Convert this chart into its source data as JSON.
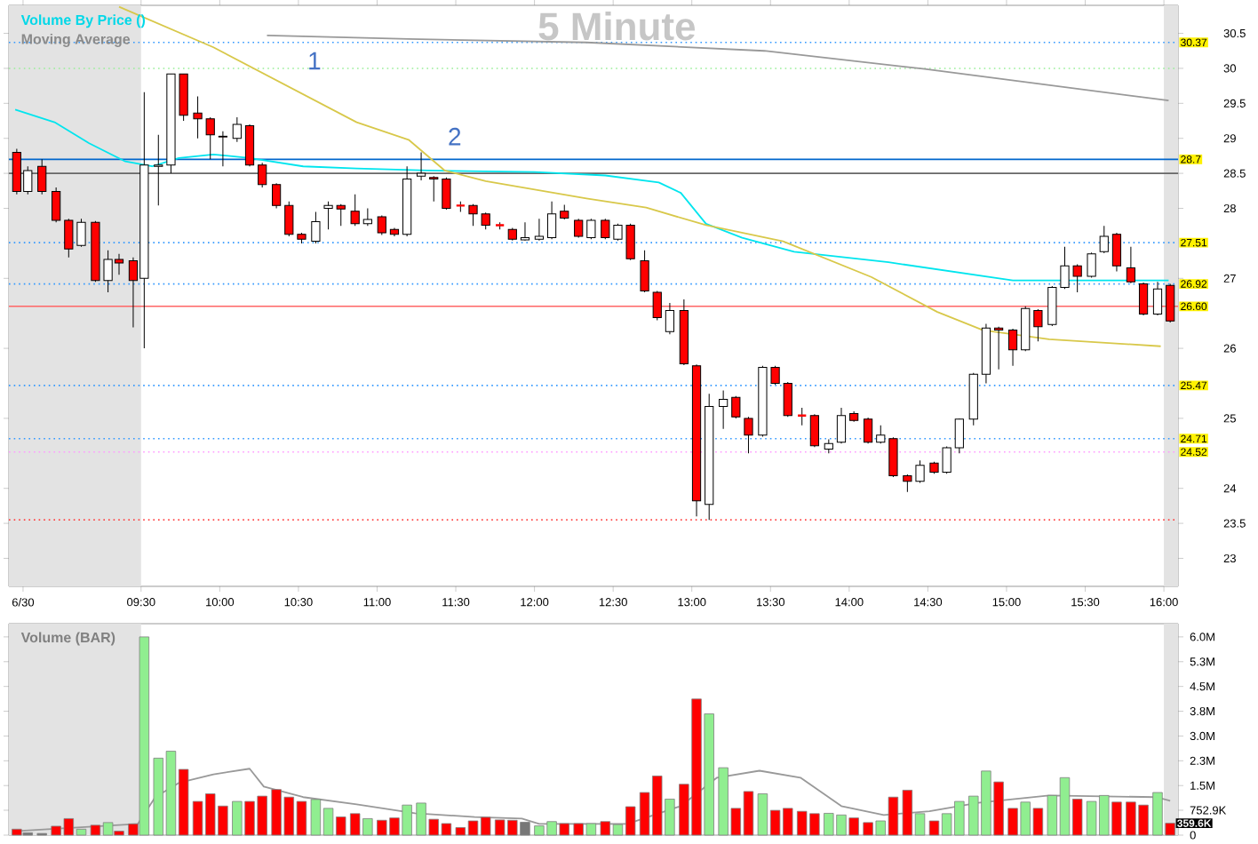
{
  "chart_data": [
    {
      "type": "candlestick",
      "title": "5 Minute",
      "annotations": [
        "Volume By Price ()",
        "Moving Average",
        "1",
        "2"
      ],
      "x": [
        8.71,
        8.78,
        8.87,
        8.96,
        9.04,
        9.12,
        9.21,
        9.29,
        9.36,
        9.45,
        9.52,
        9.61,
        9.69,
        9.77,
        9.86,
        9.94,
        10.02,
        10.11,
        10.19,
        10.27,
        10.36,
        10.44,
        10.52,
        10.61,
        10.69,
        10.77,
        10.86,
        10.94,
        11.03,
        11.11,
        11.19,
        11.28,
        11.36,
        11.44,
        11.53,
        11.61,
        11.69,
        11.78,
        11.86,
        11.94,
        12.03,
        12.11,
        12.19,
        12.28,
        12.36,
        12.45,
        12.53,
        12.61,
        12.7,
        12.78,
        12.86,
        12.95,
        13.03,
        13.11,
        13.2,
        13.28,
        13.36,
        13.45,
        13.53,
        13.61,
        13.7,
        13.78,
        13.87,
        13.95,
        14.03,
        14.12,
        14.2,
        14.28,
        14.37,
        14.45,
        14.54,
        14.62,
        14.7,
        14.79,
        14.87,
        14.95,
        15.04,
        15.12,
        15.2,
        15.29,
        15.37,
        15.45,
        15.54,
        15.62,
        15.7,
        15.79,
        15.87,
        15.96,
        16.04
      ],
      "ohlc": [
        [
          28.8,
          28.85,
          28.2,
          28.24
        ],
        [
          28.24,
          28.6,
          28.2,
          28.54
        ],
        [
          28.6,
          28.7,
          28.2,
          28.24
        ],
        [
          28.24,
          28.3,
          27.8,
          27.83
        ],
        [
          27.83,
          27.85,
          27.3,
          27.42
        ],
        [
          27.47,
          27.85,
          27.45,
          27.8
        ],
        [
          27.8,
          27.82,
          26.95,
          26.97
        ],
        [
          26.97,
          27.4,
          26.8,
          27.27
        ],
        [
          27.27,
          27.35,
          27.05,
          27.22
        ],
        [
          27.25,
          27.3,
          26.3,
          26.97
        ],
        [
          27.0,
          29.66,
          26.0,
          28.62
        ],
        [
          28.6,
          29.05,
          28.04,
          28.62
        ],
        [
          28.62,
          29.92,
          28.5,
          29.92
        ],
        [
          29.92,
          29.92,
          29.25,
          29.33
        ],
        [
          29.36,
          29.6,
          29.0,
          29.28
        ],
        [
          29.28,
          29.3,
          28.7,
          29.05
        ],
        [
          29.03,
          29.1,
          28.6,
          29.02
        ],
        [
          29.0,
          29.3,
          28.95,
          29.2
        ],
        [
          29.18,
          29.2,
          28.6,
          28.62
        ],
        [
          28.62,
          28.65,
          28.3,
          28.34
        ],
        [
          28.34,
          28.36,
          28.0,
          28.04
        ],
        [
          28.04,
          28.1,
          27.6,
          27.63
        ],
        [
          27.63,
          27.65,
          27.5,
          27.56
        ],
        [
          27.53,
          27.95,
          27.5,
          27.81
        ],
        [
          28.0,
          28.1,
          27.7,
          28.04
        ],
        [
          28.04,
          28.06,
          27.75,
          27.99
        ],
        [
          27.96,
          28.2,
          27.75,
          27.78
        ],
        [
          27.78,
          28.0,
          27.75,
          27.84
        ],
        [
          27.88,
          27.9,
          27.62,
          27.65
        ],
        [
          27.7,
          27.72,
          27.6,
          27.63
        ],
        [
          27.63,
          28.6,
          27.6,
          28.42
        ],
        [
          28.46,
          28.8,
          28.4,
          28.5
        ],
        [
          28.44,
          28.46,
          28.1,
          28.42
        ],
        [
          28.42,
          28.44,
          27.98,
          28.0
        ],
        [
          28.04,
          28.1,
          27.95,
          28.04
        ],
        [
          28.04,
          28.06,
          27.75,
          27.92
        ],
        [
          27.92,
          27.94,
          27.7,
          27.76
        ],
        [
          27.76,
          27.8,
          27.7,
          27.76
        ],
        [
          27.7,
          27.72,
          27.54,
          27.56
        ],
        [
          27.55,
          27.8,
          27.54,
          27.58
        ],
        [
          27.56,
          27.85,
          27.54,
          27.6
        ],
        [
          27.58,
          28.1,
          27.56,
          27.92
        ],
        [
          27.96,
          28.05,
          27.84,
          27.86
        ],
        [
          27.83,
          27.85,
          27.58,
          27.6
        ],
        [
          27.58,
          27.85,
          27.56,
          27.83
        ],
        [
          27.83,
          27.85,
          27.56,
          27.58
        ],
        [
          27.56,
          27.78,
          27.54,
          27.76
        ],
        [
          27.76,
          27.78,
          27.26,
          27.28
        ],
        [
          27.25,
          27.4,
          26.8,
          26.82
        ],
        [
          26.8,
          26.82,
          26.4,
          26.44
        ],
        [
          26.24,
          26.65,
          26.2,
          26.54
        ],
        [
          26.54,
          26.7,
          25.76,
          25.78
        ],
        [
          25.75,
          25.77,
          23.6,
          23.82
        ],
        [
          23.77,
          25.35,
          23.55,
          25.17
        ],
        [
          25.17,
          25.4,
          24.85,
          25.27
        ],
        [
          25.3,
          25.32,
          25.0,
          25.02
        ],
        [
          25.0,
          25.02,
          24.5,
          24.76
        ],
        [
          24.76,
          25.75,
          24.74,
          25.73
        ],
        [
          25.73,
          25.75,
          25.48,
          25.5
        ],
        [
          25.5,
          25.52,
          25.02,
          25.04
        ],
        [
          25.04,
          25.15,
          24.9,
          25.04
        ],
        [
          25.04,
          25.06,
          24.59,
          24.61
        ],
        [
          24.56,
          24.7,
          24.5,
          24.64
        ],
        [
          24.66,
          25.15,
          24.64,
          25.04
        ],
        [
          25.07,
          25.1,
          24.95,
          24.97
        ],
        [
          24.99,
          25.01,
          24.64,
          24.66
        ],
        [
          24.66,
          24.9,
          24.64,
          24.76
        ],
        [
          24.71,
          24.73,
          24.16,
          24.18
        ],
        [
          24.18,
          24.2,
          23.95,
          24.1
        ],
        [
          24.1,
          24.4,
          24.08,
          24.33
        ],
        [
          24.36,
          24.38,
          24.21,
          24.23
        ],
        [
          24.23,
          24.6,
          24.21,
          24.58
        ],
        [
          24.58,
          25.0,
          24.5,
          24.99
        ],
        [
          24.99,
          25.65,
          24.9,
          25.63
        ],
        [
          25.63,
          26.35,
          25.5,
          26.29
        ],
        [
          26.29,
          26.31,
          25.7,
          26.26
        ],
        [
          26.26,
          26.28,
          25.75,
          25.98
        ],
        [
          25.98,
          26.6,
          25.96,
          26.57
        ],
        [
          26.54,
          26.56,
          26.1,
          26.31
        ],
        [
          26.34,
          26.89,
          26.32,
          26.87
        ],
        [
          26.87,
          27.45,
          26.85,
          27.18
        ],
        [
          27.18,
          27.2,
          26.8,
          27.03
        ],
        [
          27.03,
          27.37,
          27.01,
          27.35
        ],
        [
          27.38,
          27.75,
          27.36,
          27.6
        ],
        [
          27.63,
          27.65,
          27.1,
          27.18
        ],
        [
          27.15,
          27.45,
          26.93,
          26.95
        ],
        [
          26.92,
          26.94,
          26.47,
          26.49
        ],
        [
          26.49,
          26.95,
          26.47,
          26.85
        ],
        [
          26.9,
          26.92,
          26.37,
          26.39
        ]
      ],
      "colors": [
        "#ff0000",
        "#ffffff",
        "#ff0000",
        "#ff0000",
        "#ff0000",
        "#ffffff",
        "#ff0000",
        "#ffffff",
        "#ff0000",
        "#ff0000",
        "#ffffff",
        "#ffffff",
        "#ffffff",
        "#ff0000",
        "#ff0000",
        "#ff0000",
        "#ff0000",
        "#ffffff",
        "#ff0000",
        "#ff0000",
        "#ff0000",
        "#ff0000",
        "#ff0000",
        "#ffffff",
        "#ffffff",
        "#ff0000",
        "#ff0000",
        "#ffffff",
        "#ff0000",
        "#ff0000",
        "#ffffff",
        "#ffffff",
        "#ff0000",
        "#ff0000",
        "#ff0000",
        "#ff0000",
        "#ff0000",
        "#ff0000",
        "#ff0000",
        "#ffffff",
        "#ffffff",
        "#ffffff",
        "#ff0000",
        "#ff0000",
        "#ffffff",
        "#ff0000",
        "#ffffff",
        "#ff0000",
        "#ff0000",
        "#ff0000",
        "#ffffff",
        "#ff0000",
        "#ff0000",
        "#ffffff",
        "#ffffff",
        "#ff0000",
        "#ff0000",
        "#ffffff",
        "#ff0000",
        "#ff0000",
        "#ff0000",
        "#ff0000",
        "#ffffff",
        "#ffffff",
        "#ff0000",
        "#ff0000",
        "#ffffff",
        "#ff0000",
        "#ff0000",
        "#ffffff",
        "#ff0000",
        "#ffffff",
        "#ffffff",
        "#ffffff",
        "#ffffff",
        "#ff0000",
        "#ff0000",
        "#ffffff",
        "#ff0000",
        "#ffffff",
        "#ffffff",
        "#ff0000",
        "#ffffff",
        "#ffffff",
        "#ff0000",
        "#ff0000",
        "#ff0000",
        "#ffffff",
        "#ff0000"
      ],
      "series": [
        {
          "type": "line",
          "color": "#00e5ee",
          "x": [
            8.7,
            8.95,
            9.17,
            9.4,
            9.57,
            9.74,
            9.96,
            10.19,
            10.53,
            10.87,
            11.32,
            12.0,
            12.45,
            12.79,
            12.93,
            13.09,
            13.32,
            13.65,
            14.25,
            15.04,
            16.03
          ],
          "values": [
            29.41,
            29.23,
            28.93,
            28.67,
            28.6,
            28.72,
            28.77,
            28.72,
            28.6,
            28.57,
            28.54,
            28.52,
            28.47,
            28.37,
            28.22,
            27.78,
            27.58,
            27.38,
            27.23,
            26.97,
            26.97
          ]
        },
        {
          "type": "line",
          "color": "#d8c84a",
          "x": [
            9.36,
            9.96,
            10.87,
            11.2,
            11.43,
            11.69,
            12.33,
            12.71,
            13.09,
            13.58,
            14.14,
            14.56,
            14.85,
            15.27,
            15.98
          ],
          "values": [
            30.88,
            30.3,
            29.23,
            28.98,
            28.54,
            28.39,
            28.14,
            28.01,
            27.76,
            27.53,
            27.02,
            26.52,
            26.26,
            26.13,
            26.03
          ]
        },
        {
          "type": "line",
          "color": "#999999",
          "x": [
            10.3,
            11.2,
            12.33,
            13.46,
            14.48,
            16.03
          ],
          "values": [
            30.47,
            30.42,
            30.37,
            30.25,
            29.99,
            29.54
          ]
        }
      ],
      "xlim": [
        8.66,
        16.09
      ],
      "ylim": [
        22.6,
        30.9
      ],
      "xticks": [
        {
          "value": 8.75,
          "label": "6/30"
        },
        {
          "value": 9.5,
          "label": "09:30"
        },
        {
          "value": 10,
          "label": "10:00"
        },
        {
          "value": 10.5,
          "label": "10:30"
        },
        {
          "value": 11,
          "label": "11:00"
        },
        {
          "value": 11.5,
          "label": "11:30"
        },
        {
          "value": 12,
          "label": "12:00"
        },
        {
          "value": 12.5,
          "label": "12:30"
        },
        {
          "value": 13,
          "label": "13:00"
        },
        {
          "value": 13.5,
          "label": "13:30"
        },
        {
          "value": 14,
          "label": "14:00"
        },
        {
          "value": 14.5,
          "label": "14:30"
        },
        {
          "value": 15,
          "label": "15:00"
        },
        {
          "value": 15.5,
          "label": "15:30"
        },
        {
          "value": 16,
          "label": "16:00"
        }
      ],
      "yticks": [
        23,
        23.5,
        24,
        25,
        26,
        27,
        28,
        28.5,
        29,
        29.5,
        30,
        30.5
      ],
      "ref_lines": [
        {
          "axis": "y",
          "value": 30.37,
          "label": "30.37",
          "color": "#3399ff",
          "line_style": "dotted"
        },
        {
          "axis": "y",
          "value": 30,
          "color": "#99ee99",
          "line_style": "dotted"
        },
        {
          "axis": "y",
          "value": 28.7,
          "label": "28.7",
          "color": "#0066cc",
          "line_style": "solid"
        },
        {
          "axis": "y",
          "value": 28.5,
          "color": "#666666",
          "line_style": "solid"
        },
        {
          "axis": "y",
          "value": 27.51,
          "label": "27.51",
          "color": "#3399ff",
          "line_style": "dotted"
        },
        {
          "axis": "y",
          "value": 26.92,
          "label": "26.92",
          "color": "#3399ff",
          "line_style": "dotted"
        },
        {
          "axis": "y",
          "value": 26.6,
          "label": "26.60",
          "color": "#ff6666",
          "line_style": "solid"
        },
        {
          "axis": "y",
          "value": 25.47,
          "label": "25.47",
          "color": "#3399ff",
          "line_style": "dotted"
        },
        {
          "axis": "y",
          "value": 24.71,
          "label": "24.71",
          "color": "#3399ff",
          "line_style": "dotted"
        },
        {
          "axis": "y",
          "value": 24.52,
          "label": "24.52",
          "color": "#ff99ff",
          "line_style": "dotted"
        },
        {
          "axis": "y",
          "value": 23.55,
          "color": "#ff4444",
          "line_style": "dotted"
        }
      ],
      "bands": [
        {
          "axis": "x",
          "from": 8.66,
          "to": 9.5,
          "color": "#e3e3e3"
        },
        {
          "axis": "x",
          "from": 16.0,
          "to": 16.09,
          "color": "#e3e3e3"
        }
      ]
    },
    {
      "type": "bar",
      "annotations": [
        "Volume (BAR)"
      ],
      "x": [
        8.71,
        8.78,
        8.87,
        8.96,
        9.04,
        9.12,
        9.21,
        9.29,
        9.36,
        9.45,
        9.52,
        9.61,
        9.69,
        9.77,
        9.86,
        9.94,
        10.02,
        10.11,
        10.19,
        10.27,
        10.36,
        10.44,
        10.52,
        10.61,
        10.69,
        10.77,
        10.86,
        10.94,
        11.03,
        11.11,
        11.19,
        11.28,
        11.36,
        11.44,
        11.53,
        11.61,
        11.69,
        11.78,
        11.86,
        11.94,
        12.03,
        12.11,
        12.19,
        12.28,
        12.36,
        12.45,
        12.53,
        12.61,
        12.7,
        12.78,
        12.86,
        12.95,
        13.03,
        13.11,
        13.2,
        13.28,
        13.36,
        13.45,
        13.53,
        13.61,
        13.7,
        13.78,
        13.87,
        13.95,
        14.03,
        14.12,
        14.2,
        14.28,
        14.37,
        14.45,
        14.54,
        14.62,
        14.7,
        14.79,
        14.87,
        14.95,
        15.04,
        15.12,
        15.2,
        15.29,
        15.37,
        15.45,
        15.54,
        15.62,
        15.7,
        15.79,
        15.87,
        15.96,
        16.04
      ],
      "values": [
        180000,
        70000,
        50000,
        270000,
        500000,
        180000,
        300000,
        380000,
        120000,
        340000,
        6000000,
        2330000,
        2540000,
        1990000,
        1020000,
        1250000,
        880000,
        1020000,
        1020000,
        1180000,
        1380000,
        1150000,
        1020000,
        1080000,
        810000,
        550000,
        650000,
        500000,
        450000,
        520000,
        910000,
        970000,
        480000,
        350000,
        230000,
        430000,
        540000,
        460000,
        450000,
        390000,
        280000,
        410000,
        350000,
        350000,
        350000,
        410000,
        320000,
        860000,
        1290000,
        1790000,
        1090000,
        1540000,
        4120000,
        3670000,
        2040000,
        810000,
        1320000,
        1250000,
        750000,
        810000,
        720000,
        650000,
        660000,
        610000,
        520000,
        380000,
        430000,
        1150000,
        1360000,
        650000,
        430000,
        650000,
        1020000,
        1180000,
        1940000,
        1610000,
        810000,
        1000000,
        810000,
        1200000,
        1740000,
        1090000,
        1020000,
        1200000,
        1000000,
        1000000,
        910000,
        1290000,
        359600
      ],
      "value_labels": [
        null,
        null,
        null,
        null,
        null,
        null,
        null,
        null,
        null,
        null,
        null,
        null,
        null,
        null,
        null,
        null,
        null,
        null,
        null,
        null,
        null,
        null,
        null,
        null,
        null,
        null,
        null,
        null,
        null,
        null,
        null,
        null,
        null,
        null,
        null,
        null,
        null,
        null,
        null,
        null,
        null,
        null,
        null,
        null,
        null,
        null,
        null,
        null,
        null,
        null,
        null,
        null,
        null,
        null,
        null,
        null,
        null,
        null,
        null,
        null,
        null,
        null,
        null,
        null,
        null,
        null,
        null,
        null,
        null,
        null,
        null,
        null,
        null,
        null,
        null,
        null,
        null,
        null,
        null,
        null,
        null,
        null,
        null,
        null,
        null,
        null,
        null,
        null,
        "359.6K"
      ],
      "colors": [
        "#ff0000",
        "#777777",
        "#777777",
        "#ff0000",
        "#ff0000",
        "#90ee90",
        "#ff0000",
        "#90ee90",
        "#ff0000",
        "#ff0000",
        "#90ee90",
        "#90ee90",
        "#90ee90",
        "#ff0000",
        "#ff0000",
        "#ff0000",
        "#ff0000",
        "#90ee90",
        "#ff0000",
        "#ff0000",
        "#ff0000",
        "#ff0000",
        "#ff0000",
        "#90ee90",
        "#90ee90",
        "#ff0000",
        "#ff0000",
        "#90ee90",
        "#ff0000",
        "#ff0000",
        "#90ee90",
        "#90ee90",
        "#ff0000",
        "#ff0000",
        "#ff0000",
        "#ff0000",
        "#ff0000",
        "#ff0000",
        "#ff0000",
        "#777777",
        "#90ee90",
        "#90ee90",
        "#ff0000",
        "#ff0000",
        "#90ee90",
        "#ff0000",
        "#90ee90",
        "#ff0000",
        "#ff0000",
        "#ff0000",
        "#90ee90",
        "#ff0000",
        "#ff0000",
        "#90ee90",
        "#90ee90",
        "#ff0000",
        "#ff0000",
        "#90ee90",
        "#ff0000",
        "#ff0000",
        "#ff0000",
        "#ff0000",
        "#90ee90",
        "#90ee90",
        "#ff0000",
        "#ff0000",
        "#90ee90",
        "#ff0000",
        "#ff0000",
        "#90ee90",
        "#ff0000",
        "#90ee90",
        "#90ee90",
        "#90ee90",
        "#90ee90",
        "#ff0000",
        "#ff0000",
        "#90ee90",
        "#ff0000",
        "#90ee90",
        "#90ee90",
        "#ff0000",
        "#90ee90",
        "#90ee90",
        "#ff0000",
        "#ff0000",
        "#ff0000",
        "#90ee90",
        "#ff0000"
      ],
      "series": [
        {
          "type": "line",
          "color": "#999999",
          "x": [
            8.69,
            9.48,
            9.59,
            9.74,
            9.96,
            10.19,
            10.28,
            10.53,
            10.87,
            11.24,
            11.62,
            11.92,
            12.03,
            12.59,
            12.93,
            13.16,
            13.43,
            13.69,
            13.95,
            14.22,
            14.51,
            14.82,
            15.27,
            15.95,
            16.04
          ],
          "values": [
            120000,
            340000,
            1150000,
            1580000,
            1840000,
            2010000,
            1470000,
            1150000,
            930000,
            660000,
            550000,
            500000,
            340000,
            340000,
            880000,
            1740000,
            1950000,
            1740000,
            880000,
            610000,
            720000,
            980000,
            1200000,
            1150000,
            1040000
          ]
        }
      ],
      "xlim": [
        8.66,
        16.09
      ],
      "ylim": [
        0,
        6400000
      ],
      "yticks": [
        0,
        {
          "value": 752900,
          "label": "752.9K"
        },
        {
          "value": 1500000,
          "label": "1.5M"
        },
        {
          "value": 2250000,
          "label": "2.3M"
        },
        {
          "value": 3000000,
          "label": "3.0M"
        },
        {
          "value": 3750000,
          "label": "3.8M"
        },
        {
          "value": 4500000,
          "label": "4.5M"
        },
        {
          "value": 5250000,
          "label": "5.3M"
        },
        {
          "value": 6000000,
          "label": "6.0M"
        }
      ],
      "tick_labels": "y",
      "bands": [
        {
          "axis": "x",
          "from": 8.66,
          "to": 9.5,
          "color": "#e3e3e3"
        },
        {
          "axis": "x",
          "from": 16.0,
          "to": 16.09,
          "color": "#e3e3e3"
        }
      ]
    }
  ]
}
